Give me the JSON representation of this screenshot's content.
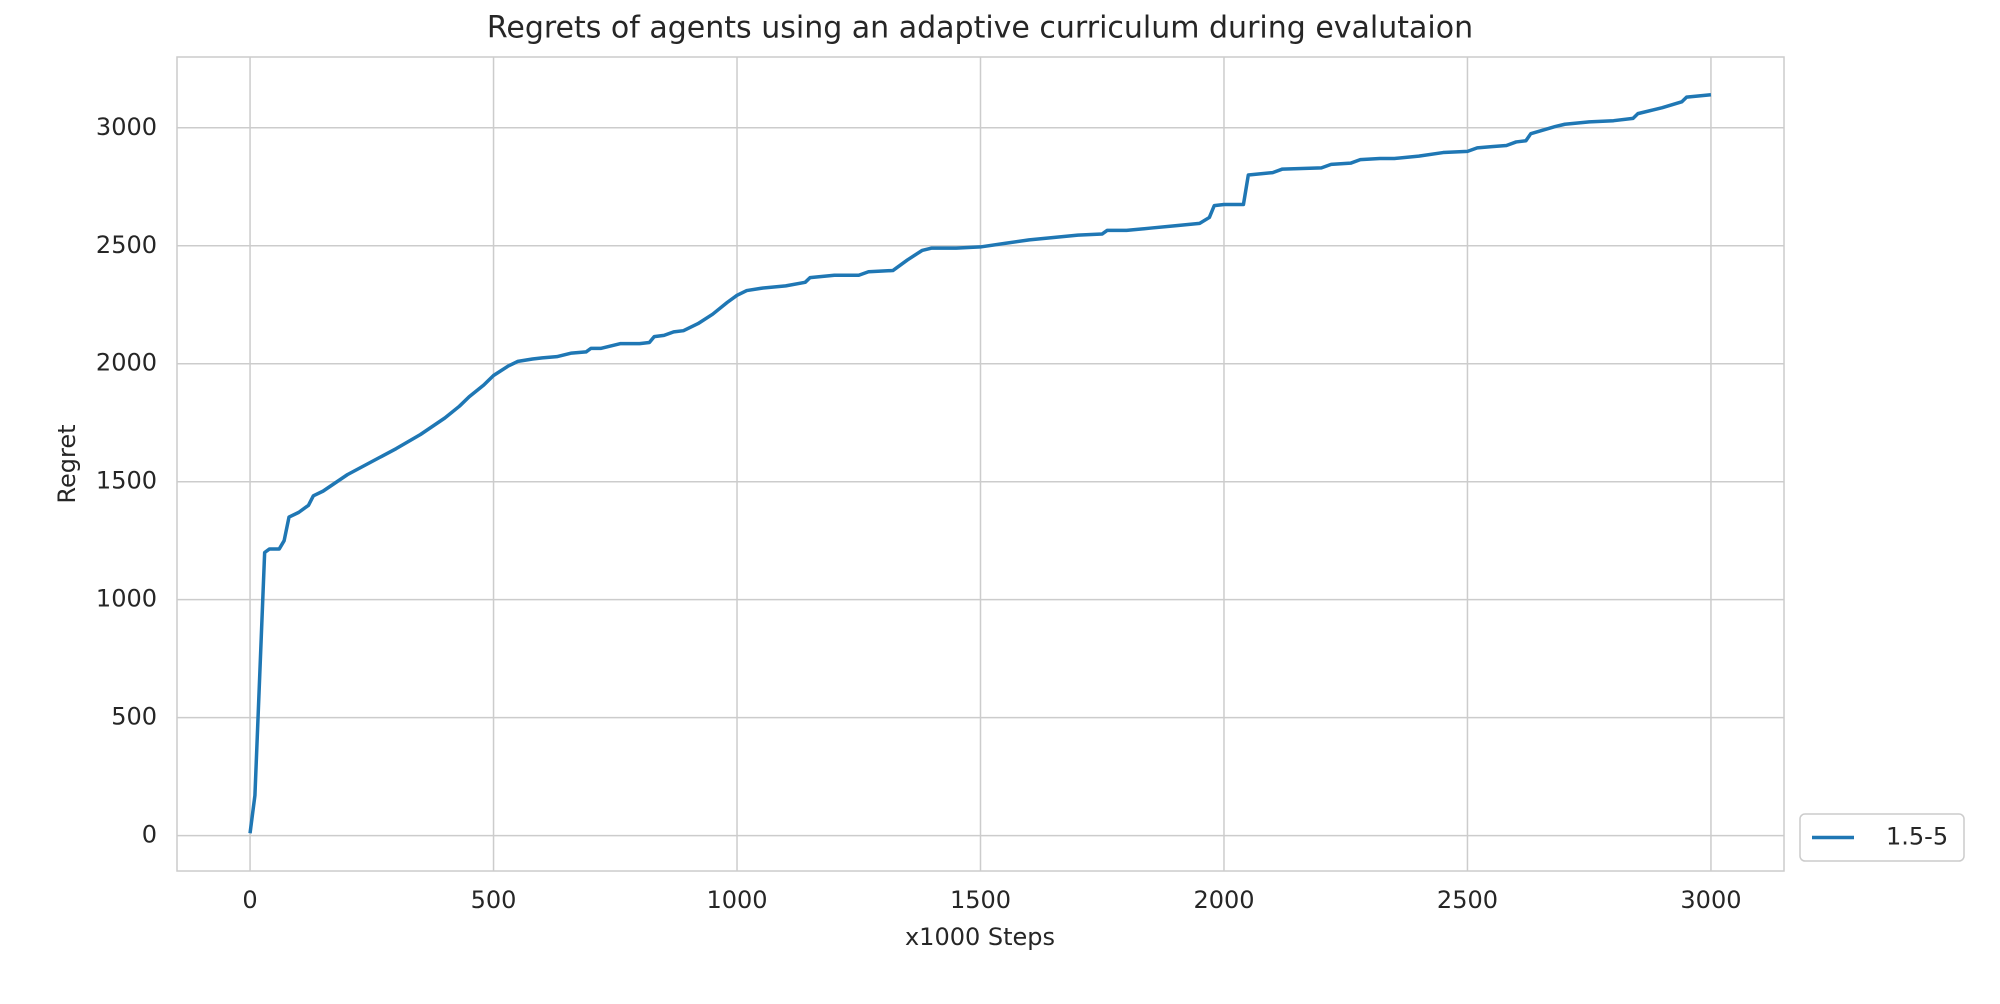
{
  "chart_data": {
    "type": "line",
    "title": "Regrets of agents using an adaptive curriculum during evalutaion",
    "x_label": "x1000 Steps",
    "y_label": "Regret",
    "x": [
      0,
      10,
      30,
      40,
      60,
      70,
      80,
      100,
      120,
      130,
      150,
      200,
      250,
      300,
      350,
      400,
      430,
      450,
      480,
      500,
      530,
      550,
      580,
      600,
      630,
      660,
      690,
      700,
      720,
      760,
      800,
      820,
      830,
      850,
      870,
      890,
      920,
      950,
      980,
      1000,
      1020,
      1050,
      1100,
      1140,
      1150,
      1200,
      1250,
      1270,
      1320,
      1350,
      1380,
      1400,
      1450,
      1500,
      1550,
      1600,
      1650,
      1700,
      1750,
      1760,
      1800,
      1850,
      1900,
      1950,
      1970,
      1980,
      2000,
      2040,
      2050,
      2100,
      2120,
      2200,
      2220,
      2260,
      2280,
      2320,
      2350,
      2400,
      2450,
      2500,
      2520,
      2550,
      2580,
      2600,
      2620,
      2630,
      2680,
      2700,
      2750,
      2800,
      2840,
      2850,
      2880,
      2900,
      2940,
      2950,
      3000
    ],
    "series": [
      {
        "name": "1.5-5",
        "color": "#1f77b4",
        "values": [
          10,
          170,
          1200,
          1215,
          1215,
          1250,
          1350,
          1370,
          1400,
          1440,
          1460,
          1530,
          1585,
          1640,
          1700,
          1770,
          1820,
          1860,
          1910,
          1950,
          1990,
          2010,
          2020,
          2025,
          2030,
          2045,
          2050,
          2065,
          2065,
          2085,
          2085,
          2090,
          2115,
          2120,
          2135,
          2140,
          2170,
          2210,
          2260,
          2290,
          2310,
          2320,
          2330,
          2345,
          2365,
          2375,
          2375,
          2390,
          2395,
          2440,
          2480,
          2490,
          2490,
          2495,
          2510,
          2525,
          2535,
          2545,
          2550,
          2565,
          2565,
          2575,
          2585,
          2595,
          2620,
          2670,
          2675,
          2675,
          2800,
          2810,
          2825,
          2830,
          2845,
          2850,
          2865,
          2870,
          2870,
          2880,
          2895,
          2900,
          2915,
          2920,
          2925,
          2940,
          2945,
          2975,
          3005,
          3015,
          3025,
          3030,
          3040,
          3060,
          3075,
          3085,
          3110,
          3130,
          3140
        ]
      }
    ],
    "xlim": [
      -150,
      3150
    ],
    "xticks": [
      0,
      500,
      1000,
      1500,
      2000,
      2500,
      3000
    ],
    "ylim": [
      -150,
      3300
    ],
    "yticks": [
      0,
      500,
      1000,
      1500,
      2000,
      2500,
      3000
    ],
    "grid": true,
    "legend": "outside lower right"
  }
}
